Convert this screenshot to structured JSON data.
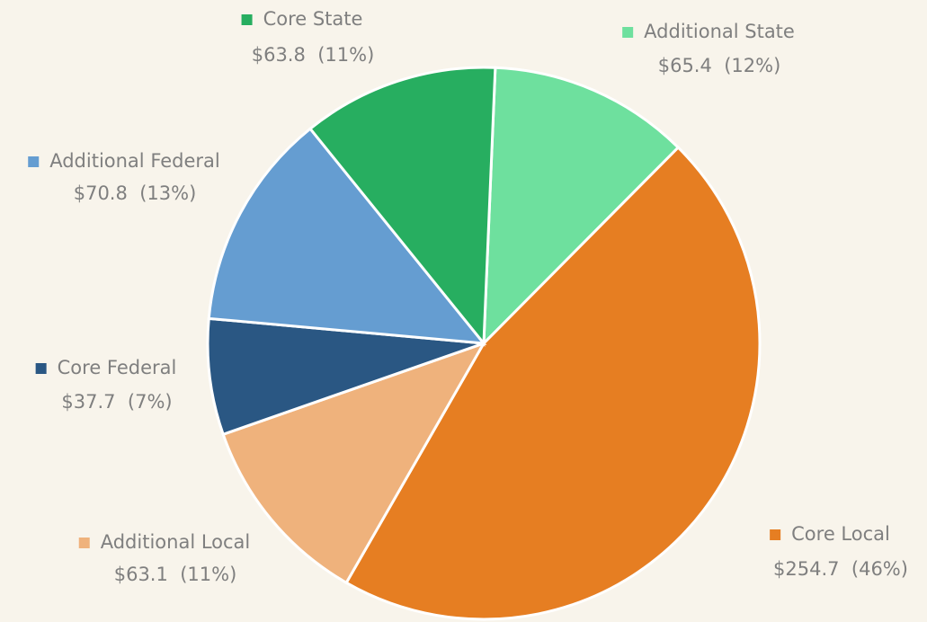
{
  "chart_data": {
    "type": "pie",
    "categories": [
      "Additional State",
      "Core Local",
      "Additional Local",
      "Core Federal",
      "Additional Federal",
      "Core State"
    ],
    "values": [
      65.4,
      254.7,
      63.1,
      37.7,
      70.8,
      63.8
    ],
    "value_labels": [
      "$65.4",
      "$254.7",
      "$63.1",
      "$37.7",
      "$70.8",
      "$63.8"
    ],
    "percents": [
      12,
      46,
      11,
      7,
      13,
      11
    ],
    "percent_labels": [
      "(12%)",
      "(46%)",
      "(11%)",
      "(7%)",
      "(13%)",
      "(11%)"
    ],
    "colors": [
      "#6ee09e",
      "#e67e22",
      "#efb27c",
      "#2a5783",
      "#659dd1",
      "#27ae60"
    ]
  }
}
